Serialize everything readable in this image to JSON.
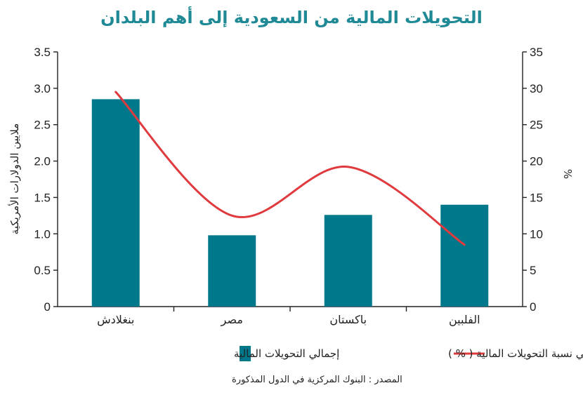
{
  "chart_data": {
    "type": "bar",
    "title": "التحويلات المالية من السعودية إلى أهم البلدان",
    "categories": [
      "بنغلادش",
      "مصر",
      "باكستان",
      "الفلبين"
    ],
    "series": [
      {
        "name": "إجمالي التحويلات المالية",
        "type": "bar",
        "axis": "left",
        "color": "#00788c",
        "values": [
          2.85,
          0.98,
          1.26,
          1.4
        ]
      },
      {
        "name": "إجمالي نسبة التحويلات المالية ( % )",
        "type": "line",
        "axis": "right",
        "color": "#e03a3e",
        "values": [
          29.5,
          12.5,
          19.2,
          8.5
        ]
      }
    ],
    "ylabel_left": "ملايين الدولارات الأمريكية",
    "ylabel_right": "%",
    "ylim_left": [
      0,
      3.5
    ],
    "ylim_right": [
      0,
      35
    ],
    "left_ticks": [
      "0",
      "0.5",
      "1.0",
      "1.5",
      "2.0",
      "2.5",
      "3.0",
      "3.5"
    ],
    "right_ticks": [
      "0",
      "5",
      "10",
      "15",
      "20",
      "25",
      "30",
      "35"
    ],
    "grid": false,
    "legend_position": "bottom",
    "source": "المصدر : البنوك المركزية في الدول المذكورة"
  }
}
